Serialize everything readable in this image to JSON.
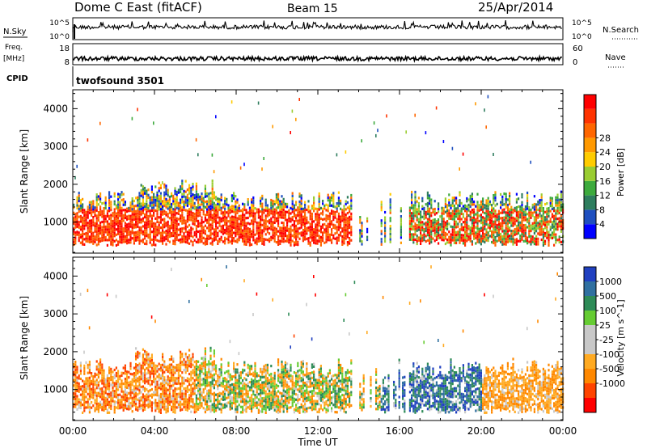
{
  "header": {
    "station": "Dome C East (fitACF)",
    "beam": "Beam 15",
    "date": "25/Apr/2014"
  },
  "top_panels": {
    "nsky_label": "N.Sky",
    "nsky_ticks": [
      "10^5",
      "10^0"
    ],
    "nsearch_label": "N.Search",
    "nsearch_ticks": [
      "10^5",
      "10^0"
    ],
    "freq_label": "Freq.",
    "freq_unit": "[MHz]",
    "freq_ticks": [
      "18",
      "8"
    ],
    "nave_label": "Nave",
    "nave_ticks": [
      "60",
      "0"
    ],
    "cpid_label": "CPID",
    "cpid_value": "twofsound 3501"
  },
  "colors": {
    "power": [
      "#0000ff",
      "#1f4fbf",
      "#2e7d5e",
      "#3daa3d",
      "#9acd32",
      "#ffcc00",
      "#ff9900",
      "#ff6600",
      "#ff3300",
      "#ff0000"
    ],
    "velocity": [
      "#ff0000",
      "#ff4400",
      "#ff8800",
      "#ffaa22",
      "#c8c8c8",
      "#c8c8c8",
      "#66cc33",
      "#2e8b57",
      "#3070a0",
      "#2040c0"
    ]
  },
  "chart_data": [
    {
      "type": "heatmap",
      "ylabel": "Slant Range [km]",
      "ylim": [
        180,
        4500
      ],
      "y_ticks": [
        1000,
        2000,
        3000,
        4000
      ],
      "xlim": [
        0,
        24
      ],
      "colorbar": {
        "label": "Power [dB]",
        "ticks": [
          "4",
          "8",
          "12",
          "16",
          "20",
          "24",
          "28"
        ]
      }
    },
    {
      "type": "heatmap",
      "ylabel": "Slant Range [km]",
      "ylim": [
        180,
        4500
      ],
      "y_ticks": [
        1000,
        2000,
        3000,
        4000
      ],
      "xlim": [
        0,
        24
      ],
      "colorbar": {
        "label": "Velocity [m s^-1]",
        "ticks": [
          "1000",
          "500",
          "100",
          "25",
          "-25",
          "-100",
          "-500",
          "-1000"
        ]
      }
    }
  ],
  "x_axis": {
    "label": "Time UT",
    "ticks": [
      "00:00",
      "04:00",
      "08:00",
      "12:00",
      "16:00",
      "20:00",
      "00:00"
    ]
  }
}
